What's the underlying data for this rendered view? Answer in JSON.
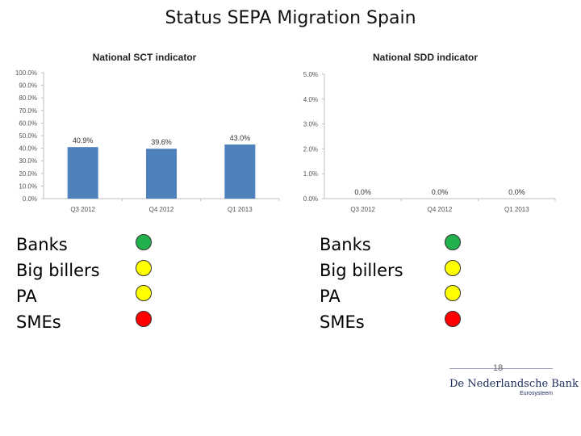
{
  "title": "Status SEPA Migration Spain",
  "colors": {
    "bar": "#4f81bd",
    "green": "#22b14c",
    "yellow": "#ffff00",
    "red": "#ff0000"
  },
  "chart_data": [
    {
      "type": "bar",
      "title": "National SCT indicator",
      "categories": [
        "Q3 2012",
        "Q4 2012",
        "Q1 2013"
      ],
      "values": [
        40.9,
        39.6,
        43.0
      ],
      "labels": [
        "40.9%",
        "39.6%",
        "43.0%"
      ],
      "ylim": [
        0,
        100
      ],
      "ticks": [
        0,
        10,
        20,
        30,
        40,
        50,
        60,
        70,
        80,
        90,
        100
      ],
      "tick_labels": [
        "0.0%",
        "10.0%",
        "20.0%",
        "30.0%",
        "40.0%",
        "50.0%",
        "60.0%",
        "70.0%",
        "80.0%",
        "90.0%",
        "100.0%"
      ],
      "grid": false,
      "xlabel": "",
      "ylabel": ""
    },
    {
      "type": "bar",
      "title": "National SDD indicator",
      "categories": [
        "Q3 2012",
        "Q4 2012",
        "Q1 2013"
      ],
      "values": [
        0.0,
        0.0,
        0.0
      ],
      "labels": [
        "0.0%",
        "0.0%",
        "0.0%"
      ],
      "ylim": [
        0,
        5
      ],
      "ticks": [
        0,
        1,
        2,
        3,
        4,
        5
      ],
      "tick_labels": [
        "0.0%",
        "1.0%",
        "2.0%",
        "3.0%",
        "4.0%",
        "5.0%"
      ],
      "grid": false,
      "xlabel": "",
      "ylabel": ""
    }
  ],
  "legends": [
    {
      "items": [
        {
          "label": "Banks",
          "status": "green"
        },
        {
          "label": "Big billers",
          "status": "yellow"
        },
        {
          "label": "PA",
          "status": "yellow"
        },
        {
          "label": "SMEs",
          "status": "red"
        }
      ]
    },
    {
      "items": [
        {
          "label": "Banks",
          "status": "green"
        },
        {
          "label": "Big billers",
          "status": "yellow"
        },
        {
          "label": "PA",
          "status": "yellow"
        },
        {
          "label": "SMEs",
          "status": "red"
        }
      ]
    }
  ],
  "page_number": "18",
  "logo": {
    "name": "De Nederlandsche Bank",
    "subtitle": "Eurosysteem"
  }
}
